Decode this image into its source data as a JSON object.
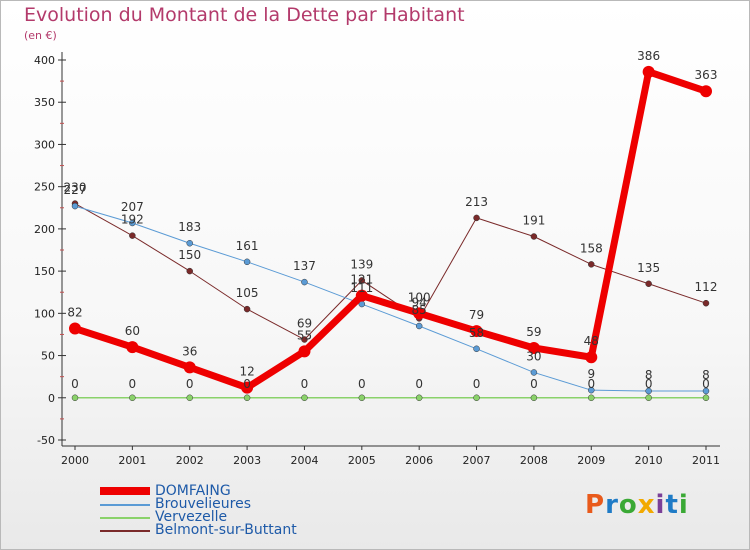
{
  "header": {
    "title": "Evolution du Montant de la Dette par Habitant",
    "unit": "(en €)"
  },
  "logo": {
    "text": "Proxiti",
    "colors": [
      "#e95a1b",
      "#1f7bc6",
      "#3aa935",
      "#f2a900",
      "#7a3f98",
      "#1f7bc6",
      "#3aa935"
    ]
  },
  "chart_data": {
    "type": "line",
    "x": [
      "2000",
      "2001",
      "2002",
      "2003",
      "2004",
      "2005",
      "2006",
      "2007",
      "2008",
      "2009",
      "2010",
      "2011"
    ],
    "ylim": [
      -50,
      400
    ],
    "yticks": [
      -50,
      0,
      50,
      100,
      150,
      200,
      250,
      300,
      350,
      400
    ],
    "grid": false,
    "legend": "bottom-left",
    "series": [
      {
        "name": "Belmont-sur-Buttant",
        "color": "#7a2a2a",
        "width": 1,
        "values": [
          230,
          192,
          150,
          105,
          69,
          139,
          94,
          213,
          191,
          158,
          135,
          112
        ]
      },
      {
        "name": "Verveezelle",
        "color": "#8ad26a",
        "width": 1.5,
        "values": [
          0,
          0,
          0,
          0,
          0,
          0,
          0,
          0,
          0,
          0,
          0,
          0
        ]
      },
      {
        "name": "Brouvelieures",
        "color": "#5b9bd5",
        "width": 1,
        "values": [
          227,
          207,
          183,
          161,
          137,
          111,
          85,
          58,
          30,
          9,
          8,
          8
        ]
      },
      {
        "name": "DOMFAING",
        "color": "#ee0000",
        "width": 7,
        "values": [
          82,
          60,
          36,
          12,
          55,
          121,
          100,
          79,
          59,
          48,
          386,
          363
        ]
      }
    ],
    "labels": {
      "DOMFAING": [
        "82",
        "60",
        "36",
        "12",
        "55",
        "121",
        "100",
        "79",
        "59",
        "48",
        "386",
        "363"
      ],
      "Brouvelieures": [
        "227",
        "207",
        "183",
        "161",
        "137",
        "111",
        "85",
        "58",
        "30",
        "9",
        "8",
        "8"
      ],
      "Verveezelle": [
        "0",
        "0",
        "0",
        "0",
        "0",
        "0",
        "0",
        "0",
        "0",
        "0",
        "0",
        "0"
      ],
      "Belmont-sur-Buttant": [
        "230",
        "192",
        "150",
        "105",
        "69",
        "139",
        "94",
        "213",
        "191",
        "158",
        "135",
        "112"
      ]
    }
  },
  "legend_items": [
    {
      "name": "DOMFAING"
    },
    {
      "name": "Brouvelieures"
    },
    {
      "name": "Vervezelle"
    },
    {
      "name": "Belmont-sur-Buttant"
    }
  ]
}
